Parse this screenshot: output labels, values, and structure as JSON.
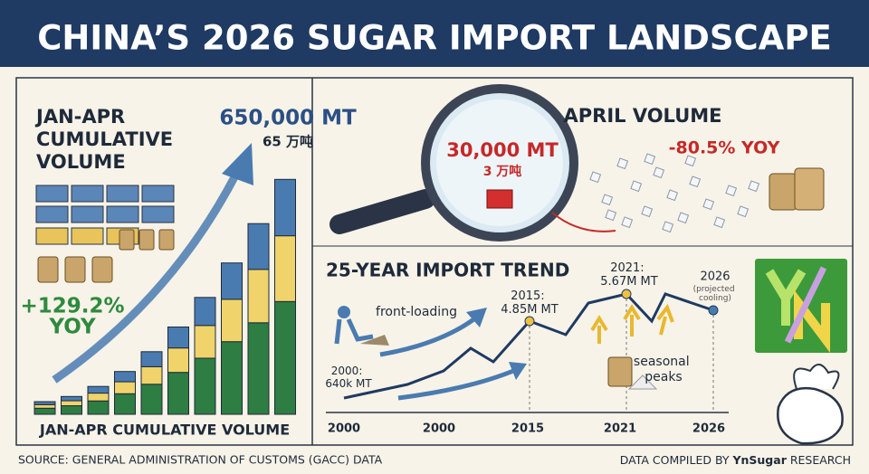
{
  "header": {
    "title": "CHINA’S 2026 SUGAR IMPORT LANDSCAPE"
  },
  "cumulative": {
    "heading": [
      "JAN-APR",
      "CUMULATIVE",
      "VOLUME"
    ],
    "total": "650,000 MT",
    "total_cn": "65 万吨",
    "yoy": "+129.2%",
    "yoy_label": "YOY",
    "chart_label": "JAN-APR CUMULATIVE VOLUME"
  },
  "april": {
    "heading": "APRIL VOLUME",
    "value": "30,000 MT",
    "value_cn": "3 万吨",
    "change": "-80.5% YOY"
  },
  "trend": {
    "title": "25-YEAR IMPORT TREND",
    "front_loading": "front-loading",
    "point_2000": [
      "2000:",
      "640k MT"
    ],
    "point_2015": [
      "2015:",
      "4.85M MT"
    ],
    "point_2021": [
      "2021:",
      "5.67M MT"
    ],
    "point_2026": "2026",
    "projected": [
      "(projected",
      "cooling)"
    ],
    "seasonal": [
      "seasonal",
      "peaks"
    ],
    "axis_labels": [
      "2000",
      "2000",
      "2015",
      "2021",
      "2026"
    ]
  },
  "footer": {
    "source": "SOURCE: GENERAL ADMINISTRATION OF CUSTOMS (GACC) DATA",
    "compiled_prefix": "DATA COMPILED BY ",
    "compiled_brand": "YnSugar",
    "compiled_suffix": " RESEARCH"
  }
}
